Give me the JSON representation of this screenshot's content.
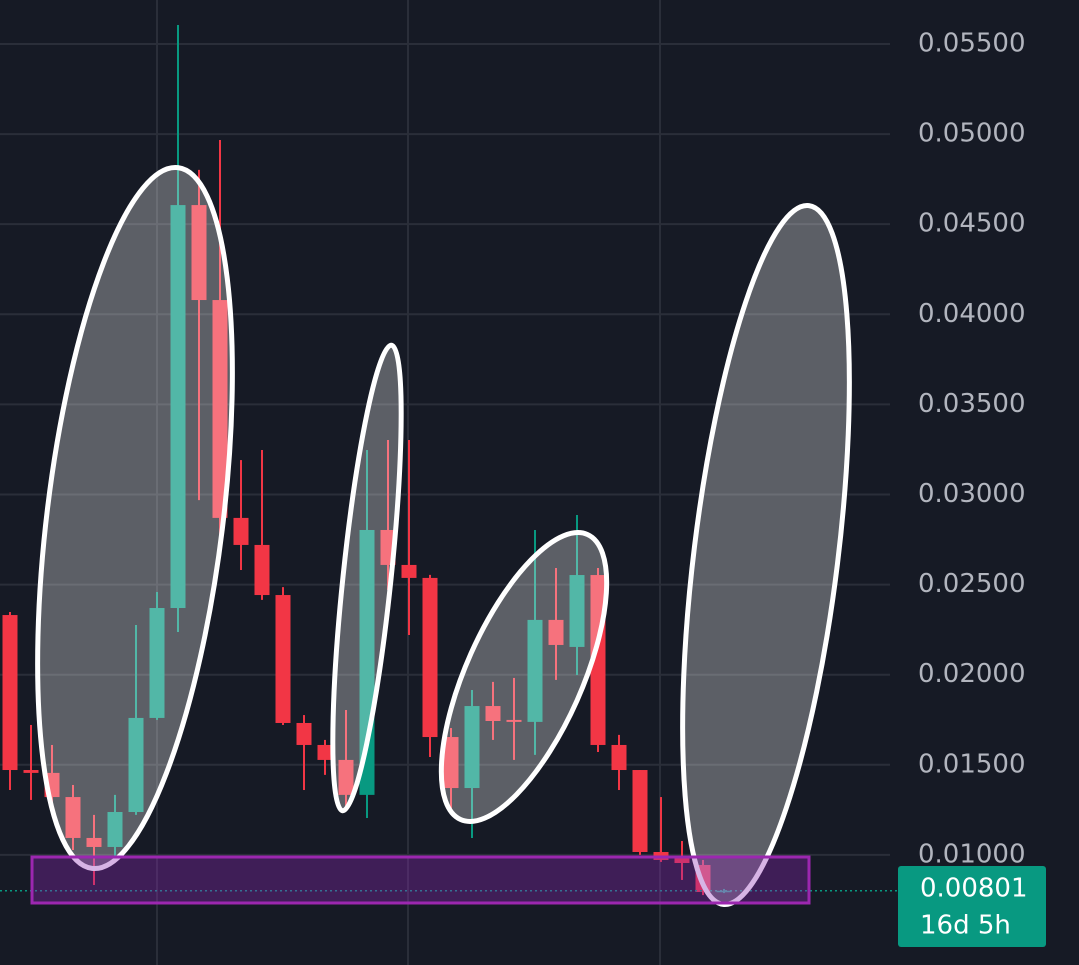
{
  "chart_data": {
    "type": "candlestick",
    "up_color": "#089981",
    "down_color": "#f23645",
    "open": [
      0.02331,
      0.01471,
      0.01455,
      0.01321,
      0.01094,
      0.01044,
      0.01238,
      0.0176,
      0.0237,
      0.04606,
      0.04079,
      0.0287,
      0.0272,
      0.02442,
      0.01732,
      0.0161,
      0.01527,
      0.01333,
      0.02803,
      0.02609,
      0.02537,
      0.01654,
      0.01371,
      0.01826,
      0.01749,
      0.01738,
      0.02304,
      0.02154,
      0.02553,
      0.0161,
      0.01471,
      0.01016,
      0.00983,
      0.00944,
      0.00794
    ],
    "high": [
      0.02348,
      0.01721,
      0.0161,
      0.01388,
      0.01222,
      0.01333,
      0.02276,
      0.02459,
      0.05605,
      0.04801,
      0.04967,
      0.03191,
      0.03247,
      0.02486,
      0.01776,
      0.01638,
      0.01804,
      0.03247,
      0.03302,
      0.03302,
      0.02554,
      0.01704,
      0.01915,
      0.0196,
      0.01982,
      0.02803,
      0.02592,
      0.02886,
      0.02592,
      0.01666,
      0.01471,
      0.01321,
      0.01077,
      0.00972,
      0.00811
    ],
    "low": [
      0.0136,
      0.01305,
      0.01249,
      0.01027,
      0.00833,
      0.00972,
      0.01222,
      0.01749,
      0.02237,
      0.02969,
      0.0272,
      0.02581,
      0.02415,
      0.01721,
      0.0136,
      0.01444,
      0.01249,
      0.01205,
      0.0247,
      0.0222,
      0.01543,
      0.01249,
      0.01094,
      0.01638,
      0.01527,
      0.01555,
      0.01971,
      0.01998,
      0.01571,
      0.0136,
      0.01,
      0.00961,
      0.00861,
      0.00777,
      0.00788
    ],
    "close": [
      0.01471,
      0.01455,
      0.01321,
      0.01094,
      0.01044,
      0.01238,
      0.0176,
      0.0237,
      0.04606,
      0.04079,
      0.0287,
      0.0272,
      0.02442,
      0.01732,
      0.0161,
      0.01527,
      0.01333,
      0.02803,
      0.02609,
      0.02537,
      0.01654,
      0.01371,
      0.01826,
      0.01743,
      0.01738,
      0.02304,
      0.02165,
      0.02553,
      0.0161,
      0.01471,
      0.01016,
      0.00972,
      0.00955,
      0.00794,
      0.00801
    ],
    "ylim": [
      0.00389,
      0.05744
    ],
    "yticks": [
      {
        "value": 0.055,
        "label": "0.05500"
      },
      {
        "value": 0.05,
        "label": "0.05000"
      },
      {
        "value": 0.045,
        "label": "0.04500"
      },
      {
        "value": 0.04,
        "label": "0.04000"
      },
      {
        "value": 0.035,
        "label": "0.03500"
      },
      {
        "value": 0.03,
        "label": "0.03000"
      },
      {
        "value": 0.025,
        "label": "0.02500"
      },
      {
        "value": 0.02,
        "label": "0.02000"
      },
      {
        "value": 0.015,
        "label": "0.01500"
      },
      {
        "value": 0.01,
        "label": "0.01000"
      }
    ],
    "grid": true,
    "last_price": 0.00801,
    "countdown": "16d 5h"
  }
}
